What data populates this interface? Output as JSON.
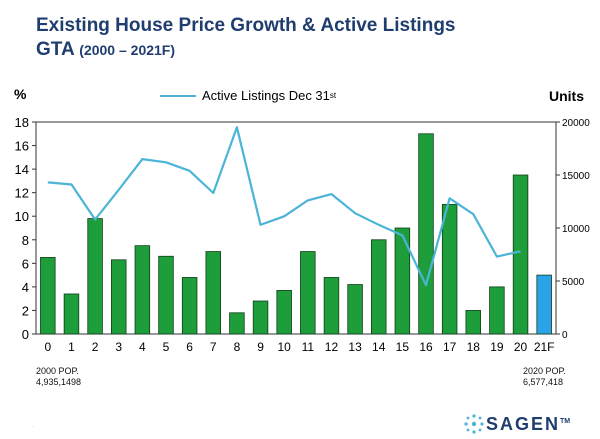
{
  "chart_data": {
    "type": "bar",
    "title": "Existing House Price Growth & Active Listings",
    "subtitle_main": "GTA",
    "subtitle_range": "(2000 – 2021F)",
    "categories": [
      "0",
      "1",
      "2",
      "3",
      "4",
      "5",
      "6",
      "7",
      "8",
      "9",
      "10",
      "11",
      "12",
      "13",
      "14",
      "15",
      "16",
      "17",
      "18",
      "19",
      "20",
      "21F"
    ],
    "series": [
      {
        "values": [
          6.5,
          3.4,
          9.8,
          6.3,
          7.5,
          6.6,
          4.8,
          7.0,
          1.8,
          2.8,
          3.7,
          7.0,
          4.8,
          4.2,
          8.0,
          9.0,
          17.0,
          11.0,
          2.0,
          4.0,
          13.5,
          5.0
        ],
        "colors": [
          "#1e9e3a",
          "#1e9e3a",
          "#1e9e3a",
          "#1e9e3a",
          "#1e9e3a",
          "#1e9e3a",
          "#1e9e3a",
          "#1e9e3a",
          "#1e9e3a",
          "#1e9e3a",
          "#1e9e3a",
          "#1e9e3a",
          "#1e9e3a",
          "#1e9e3a",
          "#1e9e3a",
          "#1e9e3a",
          "#1e9e3a",
          "#1e9e3a",
          "#1e9e3a",
          "#1e9e3a",
          "#1e9e3a",
          "#2aa4e6"
        ]
      },
      {
        "name": "Active Listings Dec 31",
        "name_sup": "st",
        "axis": "right",
        "color": "#4bb4d7",
        "values": [
          14300,
          14100,
          10800,
          13600,
          16500,
          16200,
          15400,
          13300,
          19500,
          10300,
          11100,
          12600,
          13200,
          11400,
          10300,
          9300,
          4600,
          12800,
          11300,
          7300,
          7800,
          null
        ]
      }
    ],
    "ylabel_left": "%",
    "ylabel_right": "Units",
    "ylim_left": [
      0,
      18
    ],
    "ylim_right": [
      0,
      20000
    ],
    "yticks_left": [
      "0",
      "2",
      "4",
      "6",
      "8",
      "10",
      "12",
      "14",
      "16",
      "18"
    ],
    "yticks_right": [
      "0",
      "5000",
      "10000",
      "15000",
      "20000"
    ],
    "grid": false,
    "legend": "top-center",
    "annotations": {
      "left_pop_label": "2000 POP.",
      "left_pop_value": "4,935,1498",
      "right_pop_label": "2020 POP.",
      "right_pop_value": "6,577,418"
    }
  },
  "branding": {
    "logo_text": "SAGEN",
    "logo_sup": "TM"
  },
  "colors": {
    "title": "#1f3d6e",
    "bar": "#1e9e3a",
    "forecast_bar": "#2aa4e6",
    "line": "#4bb4d7"
  }
}
